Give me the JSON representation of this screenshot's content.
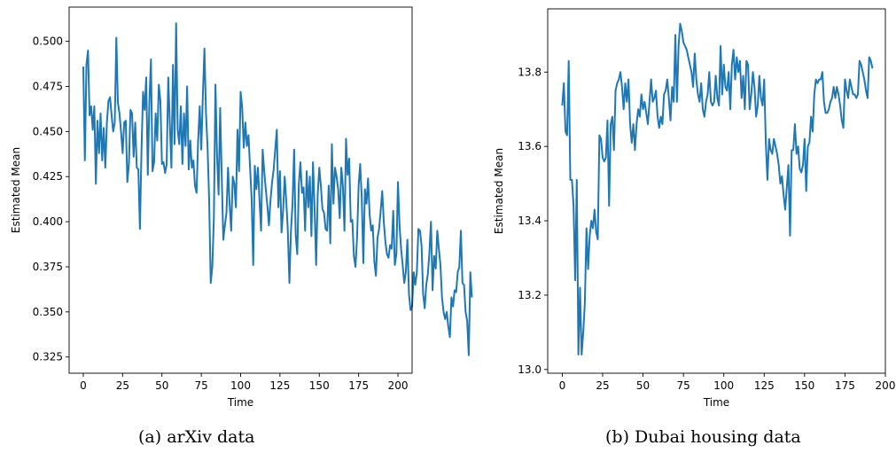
{
  "chart_data": [
    {
      "type": "line",
      "caption": "(a) arXiv data",
      "xlabel": "Time",
      "ylabel": "Estimated Mean",
      "xlim": [
        -9,
        209
      ],
      "ylim": [
        0.316,
        0.519
      ],
      "xticks": [
        0,
        25,
        50,
        75,
        100,
        125,
        150,
        175,
        200
      ],
      "xtick_labels": [
        "0",
        "25",
        "50",
        "75",
        "100",
        "125",
        "150",
        "175",
        "200"
      ],
      "yticks": [
        0.325,
        0.35,
        0.375,
        0.4,
        0.425,
        0.45,
        0.475,
        0.5
      ],
      "ytick_labels": [
        "0.325",
        "0.350",
        "0.375",
        "0.400",
        "0.425",
        "0.450",
        "0.475",
        "0.500"
      ],
      "grid": false,
      "color": "#1f77b4",
      "series": [
        {
          "x_start": 0,
          "x_step": 1,
          "values": [
            0.486,
            0.434,
            0.487,
            0.495,
            0.459,
            0.464,
            0.451,
            0.464,
            0.421,
            0.456,
            0.438,
            0.46,
            0.434,
            0.452,
            0.43,
            0.455,
            0.467,
            0.469,
            0.459,
            0.45,
            0.455,
            0.502,
            0.466,
            0.46,
            0.45,
            0.438,
            0.455,
            0.456,
            0.422,
            0.432,
            0.462,
            0.46,
            0.436,
            0.455,
            0.43,
            0.429,
            0.396,
            0.44,
            0.472,
            0.462,
            0.48,
            0.426,
            0.466,
            0.49,
            0.428,
            0.433,
            0.46,
            0.445,
            0.476,
            0.467,
            0.432,
            0.433,
            0.427,
            0.432,
            0.48,
            0.455,
            0.43,
            0.487,
            0.443,
            0.51,
            0.451,
            0.443,
            0.464,
            0.432,
            0.46,
            0.442,
            0.475,
            0.429,
            0.445,
            0.43,
            0.434,
            0.42,
            0.416,
            0.445,
            0.464,
            0.44,
            0.47,
            0.496,
            0.46,
            0.441,
            0.412,
            0.366,
            0.375,
            0.402,
            0.476,
            0.437,
            0.415,
            0.463,
            0.425,
            0.39,
            0.398,
            0.405,
            0.43,
            0.41,
            0.395,
            0.425,
            0.421,
            0.408,
            0.451,
            0.428,
            0.472,
            0.463,
            0.441,
            0.455,
            0.442,
            0.448,
            0.43,
            0.413,
            0.376,
            0.431,
            0.418,
            0.43,
            0.412,
            0.395,
            0.44,
            0.428,
            0.418,
            0.409,
            0.398,
            0.412,
            0.422,
            0.429,
            0.44,
            0.451,
            0.408,
            0.428,
            0.394,
            0.406,
            0.425,
            0.412,
            0.395,
            0.366,
            0.395,
            0.41,
            0.44,
            0.393,
            0.382,
            0.421,
            0.433,
            0.416,
            0.419,
            0.395,
            0.428,
            0.408,
            0.425,
            0.392,
            0.433,
            0.408,
            0.376,
            0.415,
            0.43,
            0.42,
            0.407,
            0.405,
            0.396,
            0.395,
            0.42,
            0.388,
            0.443,
            0.41,
            0.43,
            0.425,
            0.418,
            0.402,
            0.43,
            0.42,
            0.395,
            0.446,
            0.426,
            0.435,
            0.4,
            0.401,
            0.381,
            0.375,
            0.391,
            0.42,
            0.432,
            0.413,
            0.377,
            0.418,
            0.41,
            0.424,
            0.404,
            0.395,
            0.398,
            0.378,
            0.37,
            0.391,
            0.396,
            0.406,
            0.417,
            0.4,
            0.389,
            0.382,
            0.38,
            0.387,
            0.385,
            0.406,
            0.376,
            0.382,
            0.422,
            0.398,
            0.385,
            0.376,
            0.366,
            0.372,
            0.39,
            0.36,
            0.351,
            0.353,
            0.372,
            0.365,
            0.372,
            0.396,
            0.395,
            0.387,
            0.36,
            0.352,
            0.365,
            0.371,
            0.383,
            0.4,
            0.362,
            0.381,
            0.374,
            0.395,
            0.385,
            0.376,
            0.358,
            0.35,
            0.346,
            0.35,
            0.342,
            0.336,
            0.358,
            0.353,
            0.362,
            0.361,
            0.372,
            0.375,
            0.395,
            0.366,
            0.365,
            0.35,
            0.345,
            0.326,
            0.372,
            0.358
          ]
        }
      ]
    },
    {
      "type": "line",
      "caption": "(b) Dubai housing data",
      "xlabel": "Time",
      "ylabel": "Estimated Mean",
      "xlim": [
        -9,
        200
      ],
      "ylim": [
        12.99,
        13.97
      ],
      "xticks": [
        0,
        25,
        50,
        75,
        100,
        125,
        150,
        175,
        200
      ],
      "xtick_labels": [
        "0",
        "25",
        "50",
        "75",
        "100",
        "125",
        "150",
        "175",
        "200"
      ],
      "yticks": [
        13.0,
        13.2,
        13.4,
        13.6,
        13.8
      ],
      "ytick_labels": [
        "13.0",
        "13.2",
        "13.4",
        "13.6",
        "13.8"
      ],
      "grid": false,
      "color": "#1f77b4",
      "series": [
        {
          "x_start": 0,
          "x_step": 1,
          "values": [
            13.71,
            13.77,
            13.64,
            13.63,
            13.83,
            13.51,
            13.51,
            13.44,
            13.24,
            13.51,
            13.04,
            13.22,
            13.04,
            13.1,
            13.18,
            13.38,
            13.27,
            13.36,
            13.4,
            13.38,
            13.43,
            13.37,
            13.35,
            13.63,
            13.62,
            13.57,
            13.56,
            13.57,
            13.67,
            13.44,
            13.66,
            13.68,
            13.59,
            13.75,
            13.77,
            13.78,
            13.8,
            13.76,
            13.7,
            13.77,
            13.72,
            13.78,
            13.66,
            13.61,
            13.66,
            13.59,
            13.66,
            13.7,
            13.68,
            13.74,
            13.7,
            13.72,
            13.69,
            13.66,
            13.72,
            13.78,
            13.72,
            13.73,
            13.75,
            13.68,
            13.65,
            13.68,
            13.66,
            13.74,
            13.75,
            13.78,
            13.73,
            13.67,
            13.76,
            13.72,
            13.9,
            13.72,
            13.87,
            13.93,
            13.91,
            13.88,
            13.87,
            13.86,
            13.84,
            13.82,
            13.8,
            13.76,
            13.85,
            13.78,
            13.74,
            13.72,
            13.77,
            13.7,
            13.68,
            13.72,
            13.74,
            13.8,
            13.72,
            13.71,
            13.72,
            13.79,
            13.73,
            13.71,
            13.87,
            13.74,
            13.82,
            13.76,
            13.75,
            13.8,
            13.7,
            13.82,
            13.86,
            13.78,
            13.84,
            13.8,
            13.83,
            13.73,
            13.79,
            13.7,
            13.83,
            13.82,
            13.7,
            13.74,
            13.8,
            13.76,
            13.68,
            13.71,
            13.79,
            13.73,
            13.71,
            13.78,
            13.61,
            13.51,
            13.62,
            13.59,
            13.58,
            13.62,
            13.6,
            13.58,
            13.55,
            13.5,
            13.52,
            13.47,
            13.43,
            13.49,
            13.55,
            13.36,
            13.59,
            13.59,
            13.66,
            13.58,
            13.6,
            13.54,
            13.53,
            13.55,
            13.62,
            13.48,
            13.6,
            13.61,
            13.68,
            13.64,
            13.74,
            13.78,
            13.77,
            13.78,
            13.78,
            13.8,
            13.72,
            13.69,
            13.69,
            13.7,
            13.72,
            13.73,
            13.76,
            13.73,
            13.76,
            13.74,
            13.71,
            13.67,
            13.65,
            13.78,
            13.75,
            13.73,
            13.78,
            13.76,
            13.74,
            13.74,
            13.73,
            13.74,
            13.83,
            13.82,
            13.8,
            13.78,
            13.75,
            13.73,
            13.84,
            13.83,
            13.81
          ]
        }
      ]
    }
  ]
}
